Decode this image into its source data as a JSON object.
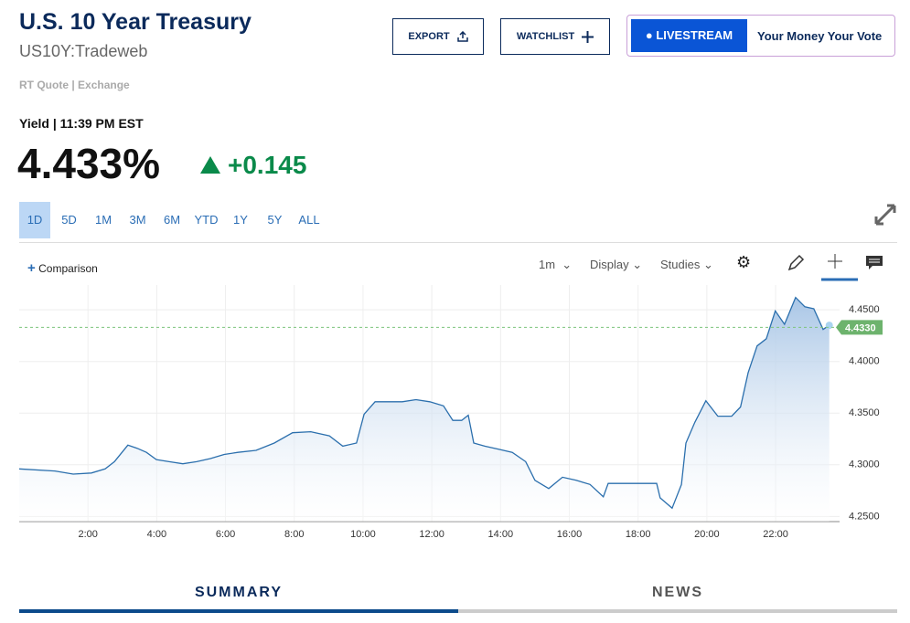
{
  "header": {
    "title": "U.S. 10 Year Treasury",
    "symbol": "US10Y:Tradeweb",
    "quote_source": "RT Quote | Exchange"
  },
  "buttons": {
    "export": "EXPORT",
    "watchlist": "WATCHLIST",
    "livestream": "LIVESTREAM",
    "promo": "Your Money Your Vote"
  },
  "quote": {
    "label": "Yield | 11:39 PM EST",
    "price": "4.433%",
    "change": "+0.145"
  },
  "ranges": [
    "1D",
    "5D",
    "1M",
    "3M",
    "6M",
    "YTD",
    "1Y",
    "5Y",
    "ALL"
  ],
  "toolbar": {
    "comparison": "Comparison",
    "interval": "1m",
    "display": "Display",
    "studies": "Studies"
  },
  "chart_data": {
    "type": "area",
    "color": "#2b6fad",
    "grid": true,
    "x": [
      0.0,
      1.04,
      1.57,
      2.1,
      2.5,
      2.77,
      3.16,
      3.43,
      3.7,
      3.99,
      4.36,
      4.76,
      5.16,
      5.56,
      5.96,
      6.36,
      6.89,
      7.42,
      7.95,
      8.48,
      9.02,
      9.41,
      9.81,
      10.03,
      10.35,
      10.74,
      11.14,
      11.54,
      11.94,
      12.34,
      12.61,
      12.87,
      13.06,
      13.22,
      13.54,
      13.94,
      14.34,
      14.73,
      15.0,
      15.4,
      15.8,
      16.2,
      16.6,
      16.99,
      17.13,
      17.53,
      18.06,
      18.54,
      18.64,
      18.99,
      19.26,
      19.39,
      19.65,
      19.97,
      20.32,
      20.72,
      20.98,
      21.2,
      21.46,
      21.73,
      21.99,
      22.26,
      22.58,
      22.85,
      23.11,
      23.38,
      23.56
    ],
    "series": [
      {
        "values": [
          4.296,
          4.294,
          4.291,
          4.292,
          4.296,
          4.303,
          4.319,
          4.316,
          4.312,
          4.305,
          4.303,
          4.301,
          4.303,
          4.306,
          4.31,
          4.312,
          4.314,
          4.321,
          4.331,
          4.332,
          4.328,
          4.318,
          4.321,
          4.349,
          4.361,
          4.361,
          4.361,
          4.363,
          4.361,
          4.357,
          4.343,
          4.343,
          4.348,
          4.321,
          4.318,
          4.315,
          4.312,
          4.303,
          4.285,
          4.277,
          4.288,
          4.285,
          4.281,
          4.269,
          4.282,
          4.282,
          4.282,
          4.282,
          4.268,
          4.258,
          4.281,
          4.321,
          4.341,
          4.362,
          4.347,
          4.347,
          4.356,
          4.389,
          4.415,
          4.422,
          4.449,
          4.436,
          4.462,
          4.453,
          4.451,
          4.431,
          4.435
        ]
      }
    ],
    "xlim": [
      0,
      23.86
    ],
    "xticks": [
      {
        "value": 2,
        "label": "2:00"
      },
      {
        "value": 4,
        "label": "4:00"
      },
      {
        "value": 6,
        "label": "6:00"
      },
      {
        "value": 8,
        "label": "8:00"
      },
      {
        "value": 10,
        "label": "10:00"
      },
      {
        "value": 12,
        "label": "12:00"
      },
      {
        "value": 14,
        "label": "14:00"
      },
      {
        "value": 16,
        "label": "16:00"
      },
      {
        "value": 18,
        "label": "18:00"
      },
      {
        "value": 20,
        "label": "20:00"
      },
      {
        "value": 22,
        "label": "22:00"
      }
    ],
    "ylim": [
      4.245,
      4.474
    ],
    "yticks": [
      {
        "value": 4.25,
        "label": "4.2500"
      },
      {
        "value": 4.3,
        "label": "4.3000"
      },
      {
        "value": 4.35,
        "label": "4.3500"
      },
      {
        "value": 4.4,
        "label": "4.4000"
      },
      {
        "value": 4.45,
        "label": "4.4500"
      }
    ],
    "current_value": {
      "value": 4.433,
      "label": "4.4330"
    }
  },
  "tabs": [
    "SUMMARY",
    "NEWS"
  ]
}
